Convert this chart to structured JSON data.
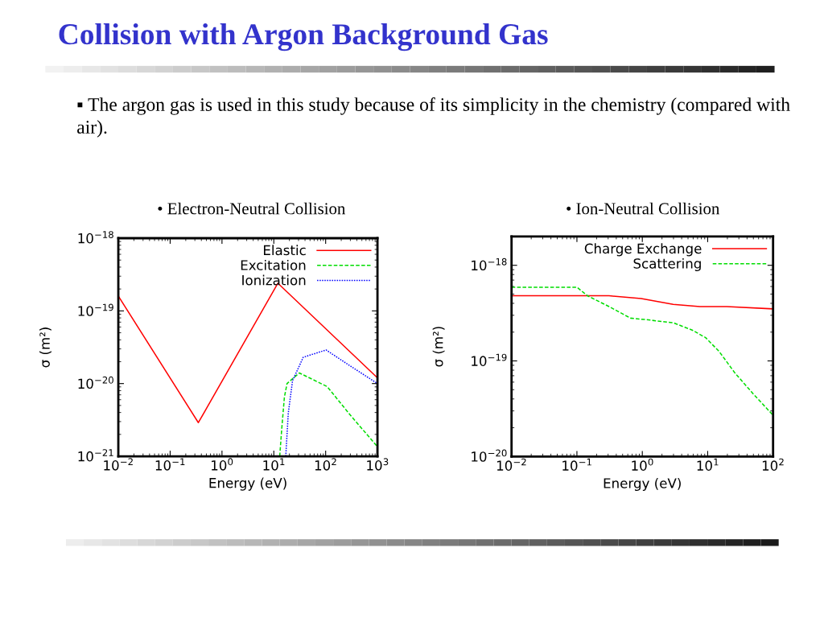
{
  "chart_data": [
    {
      "type": "line",
      "title": "• Electron-Neutral Collision",
      "xlabel": "Energy (eV)",
      "ylabel": "σ (m²)",
      "annotations": [
        "Collision with Argon Background Gas",
        "▪ The argon gas is used in this study because of its simplicity in the chemistry (compared with air)."
      ],
      "log": "xy",
      "xlim": [
        0.01,
        1000
      ],
      "ylim": [
        1e-21,
        1e-18
      ],
      "xticks": [
        {
          "value": 0.01,
          "label": "10$^{−2}$"
        },
        {
          "value": 0.1,
          "label": "10$^{−1}$"
        },
        {
          "value": 1,
          "label": "10$^{0}$"
        },
        {
          "value": 10,
          "label": "10$^{1}$"
        },
        {
          "value": 100,
          "label": "10$^{2}$"
        },
        {
          "value": 1000,
          "label": "10$^{3}$"
        }
      ],
      "yticks": [
        {
          "value": 1e-21,
          "label": "10$^{−21}$"
        },
        {
          "value": 1e-20,
          "label": "10$^{−20}$"
        },
        {
          "value": 1e-19,
          "label": "10$^{−19}$"
        },
        {
          "value": 1e-18,
          "label": "10$^{−18}$"
        }
      ],
      "grid": false,
      "legend": "top right",
      "series": [
        {
          "name": "Elastic",
          "color": "#ff0000",
          "line_style": "solid",
          "x": [
            0.01,
            0.35,
            12,
            1000
          ],
          "values": [
            1.6e-19,
            2.9e-21,
            2.4e-19,
            1.2e-20
          ]
        },
        {
          "name": "Excitation",
          "color": "#00dd00",
          "line_style": "dashed",
          "x": [
            13,
            14.2,
            16,
            18,
            31,
            107,
            280,
            1000
          ],
          "values": [
            1e-21,
            2.35e-21,
            6.5e-21,
            1e-20,
            1.4e-20,
            9.1e-21,
            3.9e-21,
            1.35e-21
          ]
        },
        {
          "name": "Ionization",
          "color": "#0000ff",
          "line_style": "dotted",
          "x": [
            17,
            19,
            23,
            37,
            102,
            280,
            1000
          ],
          "values": [
            1e-21,
            3.9e-21,
            1.1e-20,
            2.3e-20,
            2.9e-20,
            1.8e-20,
            1e-20
          ]
        }
      ]
    },
    {
      "type": "line",
      "title": "• Ion-Neutral Collision",
      "xlabel": "Energy (eV)",
      "ylabel": "σ (m²)",
      "log": "xy",
      "xlim": [
        0.01,
        100
      ],
      "ylim": [
        1e-20,
        2e-18
      ],
      "xticks": [
        {
          "value": 0.01,
          "label": "10$^{−2}$"
        },
        {
          "value": 0.1,
          "label": "10$^{−1}$"
        },
        {
          "value": 1,
          "label": "10$^{0}$"
        },
        {
          "value": 10,
          "label": "10$^{1}$"
        },
        {
          "value": 100,
          "label": "10$^{2}$"
        }
      ],
      "yticks": [
        {
          "value": 1e-20,
          "label": "10$^{−20}$"
        },
        {
          "value": 1e-19,
          "label": "10$^{−19}$"
        },
        {
          "value": 1e-18,
          "label": "10$^{−18}$"
        }
      ],
      "grid": false,
      "legend": "top right",
      "series": [
        {
          "name": "Charge Exchange",
          "color": "#ff0000",
          "line_style": "solid",
          "x": [
            0.01,
            0.31,
            0.96,
            2.97,
            7.6,
            19.6,
            100
          ],
          "values": [
            4.8e-19,
            4.8e-19,
            4.5e-19,
            3.9e-19,
            3.7e-19,
            3.7e-19,
            3.5e-19
          ]
        },
        {
          "name": "Scattering",
          "color": "#00dd00",
          "line_style": "dashed",
          "x": [
            0.01,
            0.1,
            0.145,
            0.31,
            0.66,
            1.15,
            3.0,
            5.8,
            9.3,
            14.9,
            26,
            50,
            100
          ],
          "values": [
            5.9e-19,
            5.9e-19,
            4.8e-19,
            3.7e-19,
            2.8e-19,
            2.7e-19,
            2.5e-19,
            2.1e-19,
            1.75e-19,
            1.26e-19,
            7.5e-20,
            4.5e-20,
            2.7e-20
          ]
        }
      ]
    }
  ]
}
